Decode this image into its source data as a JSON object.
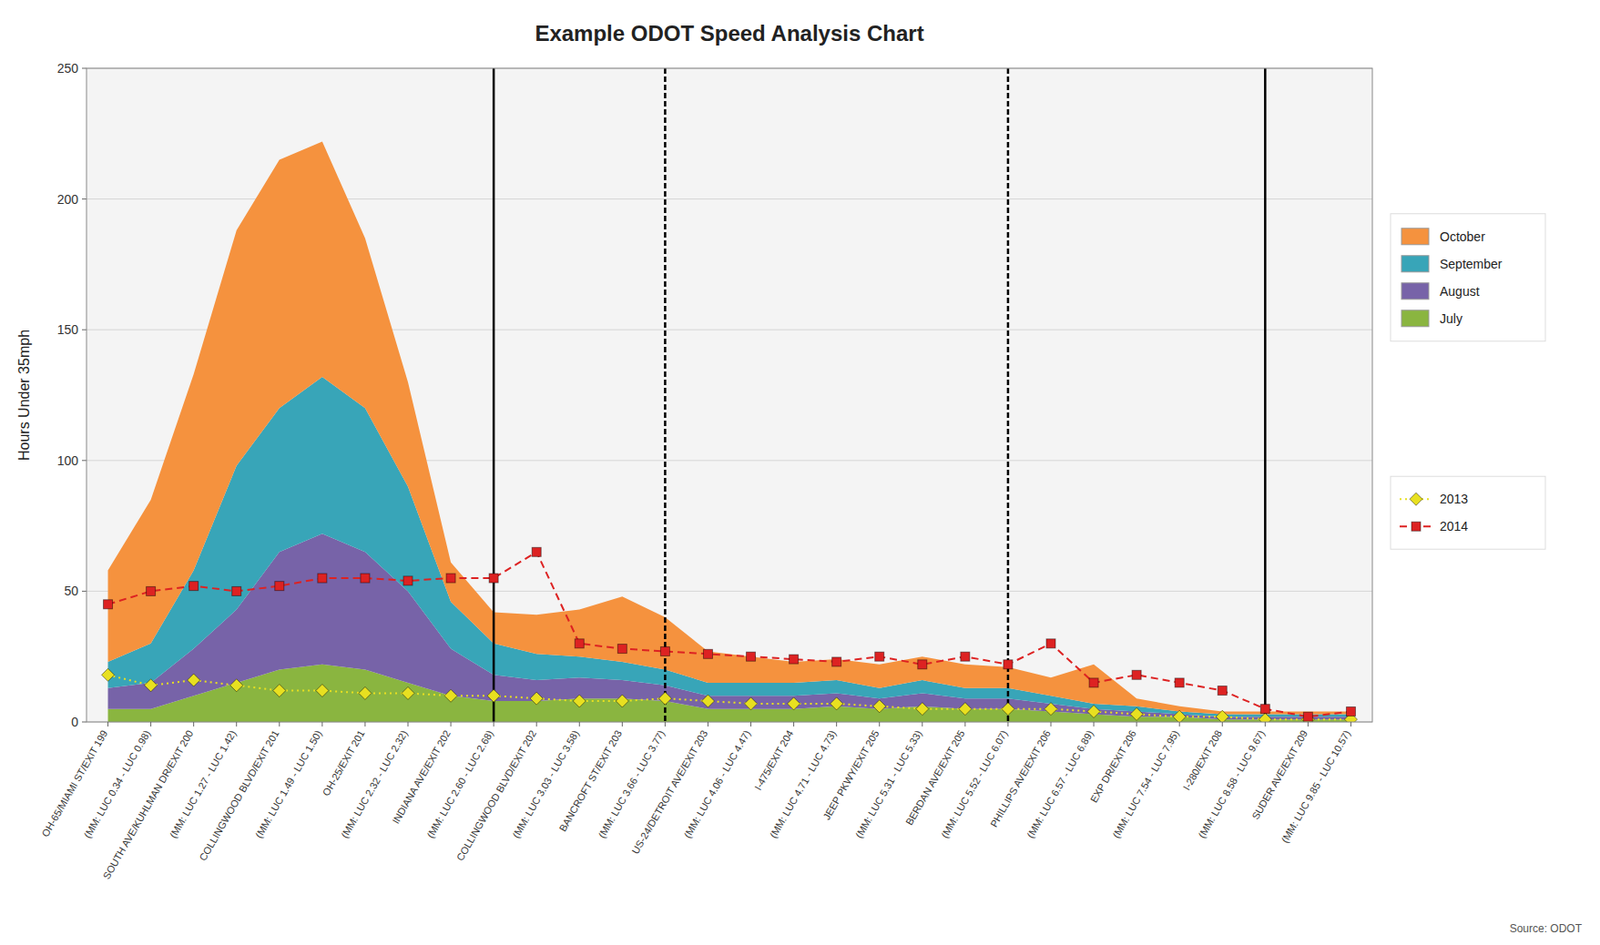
{
  "chart_data": {
    "type": "area",
    "stacked": true,
    "title": "Example ODOT Speed Analysis Chart",
    "y_label": "Hours Under 35mph",
    "source": "Source: ODOT",
    "ylim": [
      0,
      250
    ],
    "yticks": [
      0,
      50,
      100,
      150,
      200,
      250
    ],
    "grid": true,
    "legend": "right",
    "categories": [
      "OH-65/MIAMI ST/EXIT 199",
      "(MM: LUC 0.34 - LUC 0.98)",
      "SOUTH AVE/KUHLMAN DR/EXIT 200",
      "(MM: LUC 1.27 - LUC 1.42)",
      "COLLINGWOOD BLVD/EXIT 201",
      "(MM: LUC 1.49 - LUC 1.50)",
      "OH-25/EXIT 201",
      "(MM: LUC 2.32 - LUC 2.32)",
      "INDIANA AVE/EXIT 202",
      "(MM: LUC 2.60 - LUC 2.68)",
      "COLLINGWOOD BLVD/EXIT 202",
      "(MM: LUC 3.03 - LUC 3.58)",
      "BANCROFT ST/EXIT 203",
      "(MM: LUC 3.66 - LUC 3.77)",
      "US-24/DETROIT AVE/EXIT 203",
      "(MM: LUC 4.06 - LUC 4.47)",
      "I-475/EXIT 204",
      "(MM: LUC 4.71 - LUC 4.73)",
      "JEEP PKWY/EXIT 205",
      "(MM: LUC 5.31 - LUC 5.33)",
      "BERDAN AVE/EXIT 205",
      "(MM: LUC 5.52 - LUC 6.07)",
      "PHILLIPS AVE/EXIT 206",
      "(MM: LUC 6.57 - LUC 6.89)",
      "EXP DR/EXIT 206",
      "(MM: LUC 7.54 - LUC 7.95)",
      "I-280/EXIT 208",
      "(MM: LUC 8.58 - LUC 9.67)",
      "SUDER AVE/EXIT 209",
      "(MM: LUC 9.85 - LUC 10.57)"
    ],
    "series": [
      {
        "name": "July",
        "type": "area",
        "color": "#8ab540",
        "values": [
          5,
          5,
          10,
          15,
          20,
          22,
          20,
          15,
          10,
          8,
          8,
          9,
          9,
          8,
          5,
          5,
          5,
          6,
          5,
          6,
          5,
          5,
          4,
          3,
          2,
          2,
          1,
          1,
          1,
          1
        ]
      },
      {
        "name": "August",
        "type": "area",
        "color": "#7763a8",
        "values": [
          8,
          10,
          18,
          28,
          45,
          50,
          45,
          35,
          18,
          10,
          8,
          8,
          7,
          6,
          5,
          5,
          5,
          5,
          4,
          5,
          4,
          4,
          3,
          2,
          2,
          1,
          1,
          1,
          1,
          1
        ]
      },
      {
        "name": "September",
        "type": "area",
        "color": "#38a5b8",
        "values": [
          10,
          15,
          30,
          55,
          55,
          60,
          55,
          40,
          18,
          12,
          10,
          8,
          7,
          6,
          5,
          5,
          5,
          5,
          4,
          5,
          4,
          4,
          3,
          2,
          2,
          1,
          1,
          1,
          1,
          1
        ]
      },
      {
        "name": "October",
        "type": "area",
        "color": "#f5923e",
        "values": [
          35,
          55,
          75,
          90,
          95,
          90,
          65,
          40,
          15,
          12,
          15,
          18,
          25,
          20,
          12,
          10,
          8,
          8,
          9,
          9,
          9,
          8,
          7,
          15,
          3,
          2,
          1,
          1,
          1,
          1
        ]
      },
      {
        "name": "2013",
        "type": "line",
        "color": "#e8e020",
        "marker": "diamond",
        "line_style": "dotted",
        "values": [
          18,
          14,
          16,
          14,
          12,
          12,
          11,
          11,
          10,
          10,
          9,
          8,
          8,
          9,
          8,
          7,
          7,
          7,
          6,
          5,
          5,
          5,
          5,
          4,
          3,
          2,
          2,
          1,
          1,
          1
        ]
      },
      {
        "name": "2014",
        "type": "line",
        "color": "#dd2222",
        "marker": "square",
        "line_style": "dashed",
        "values": [
          45,
          50,
          52,
          50,
          52,
          55,
          55,
          54,
          55,
          55,
          65,
          30,
          28,
          27,
          26,
          25,
          24,
          23,
          25,
          22,
          25,
          22,
          30,
          15,
          18,
          15,
          12,
          5,
          2,
          4
        ]
      }
    ],
    "vlines": [
      {
        "category": "(MM: LUC 2.60 - LUC 2.68)",
        "line_style": "solid"
      },
      {
        "category": "(MM: LUC 8.58 - LUC 9.67)",
        "line_style": "solid"
      },
      {
        "category": "(MM: LUC 3.66 - LUC 3.77)",
        "line_style": "dashed"
      },
      {
        "category": "(MM: LUC 5.52 - LUC 6.07)",
        "line_style": "dashed"
      }
    ]
  }
}
